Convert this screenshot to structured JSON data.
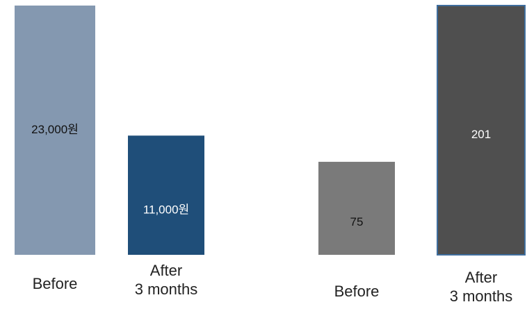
{
  "chart_data": [
    {
      "type": "bar",
      "categories": [
        "Before",
        "After\n3 months"
      ],
      "values": [
        23000,
        11000
      ],
      "data_labels": [
        "23,000원",
        "11,000원"
      ],
      "colors": [
        "#8498B0",
        "#1F4E79"
      ],
      "label_colors": [
        "#111111",
        "#ffffff"
      ],
      "title": "",
      "xlabel": "",
      "ylabel": "",
      "ylim": [
        0,
        23000
      ],
      "grid": false
    },
    {
      "type": "bar",
      "categories": [
        "Before",
        "After\n3 months"
      ],
      "values": [
        75,
        201
      ],
      "data_labels": [
        "75",
        "201"
      ],
      "colors": [
        "#7A7A7A",
        "#4F4F4F"
      ],
      "label_colors": [
        "#111111",
        "#ffffff"
      ],
      "title": "",
      "xlabel": "",
      "ylabel": "",
      "ylim": [
        0,
        201
      ],
      "grid": false
    }
  ]
}
